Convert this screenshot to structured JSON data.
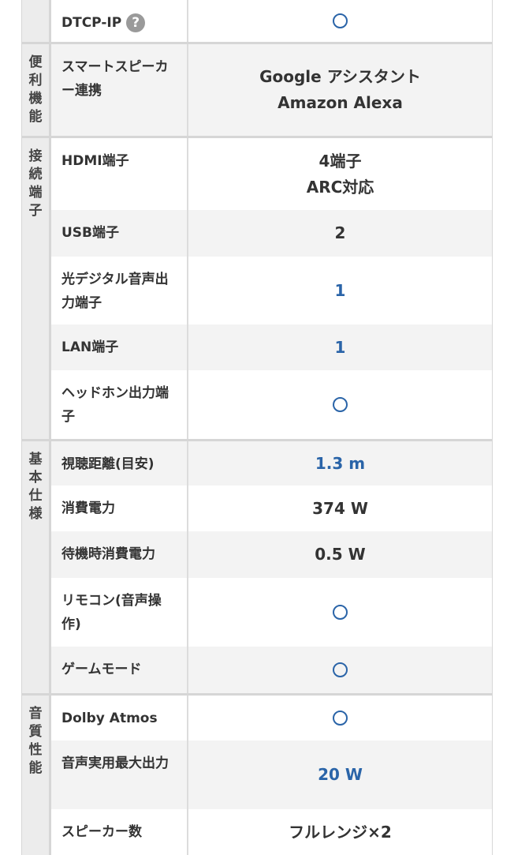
{
  "colors": {
    "link": "#2a64a8",
    "category_bg": "#ececec",
    "row_alt": "#f3f3f3"
  },
  "groups": [
    {
      "category": "",
      "rows": [
        {
          "label": "DTCP-IP",
          "help_icon": "question-circle-icon",
          "value": "○",
          "type": "circle"
        }
      ]
    },
    {
      "category": "便利機能",
      "rows": [
        {
          "label": "スマートスピーカー連携",
          "value_lines": [
            "Google アシスタント",
            "Amazon Alexa"
          ]
        }
      ]
    },
    {
      "category": "接続端子",
      "rows": [
        {
          "label": "HDMI端子",
          "value_lines": [
            "4端子",
            "ARC対応"
          ]
        },
        {
          "label": "USB端子",
          "value": "2"
        },
        {
          "label": "光デジタル音声出力端子",
          "value": "1",
          "link": true
        },
        {
          "label": "LAN端子",
          "value": "1",
          "link": true
        },
        {
          "label": "ヘッドホン出力端子",
          "value": "○",
          "type": "circle"
        }
      ]
    },
    {
      "category": "基本仕様",
      "rows": [
        {
          "label": "視聴距離(目安)",
          "value": "1.3 m",
          "link": true
        },
        {
          "label": "消費電力",
          "value": "374 W"
        },
        {
          "label": "待機時消費電力",
          "value": "0.5 W"
        },
        {
          "label": "リモコン(音声操作)",
          "value": "○",
          "type": "circle"
        },
        {
          "label": "ゲームモード",
          "value": "○",
          "type": "circle"
        }
      ]
    },
    {
      "category": "音質性能",
      "rows": [
        {
          "label": "Dolby Atmos",
          "value": "○",
          "type": "circle"
        },
        {
          "label": "音声実用最大出力",
          "value": "20 W",
          "link": true
        },
        {
          "label": "スピーカー数",
          "value": "フルレンジ×2"
        }
      ]
    }
  ]
}
